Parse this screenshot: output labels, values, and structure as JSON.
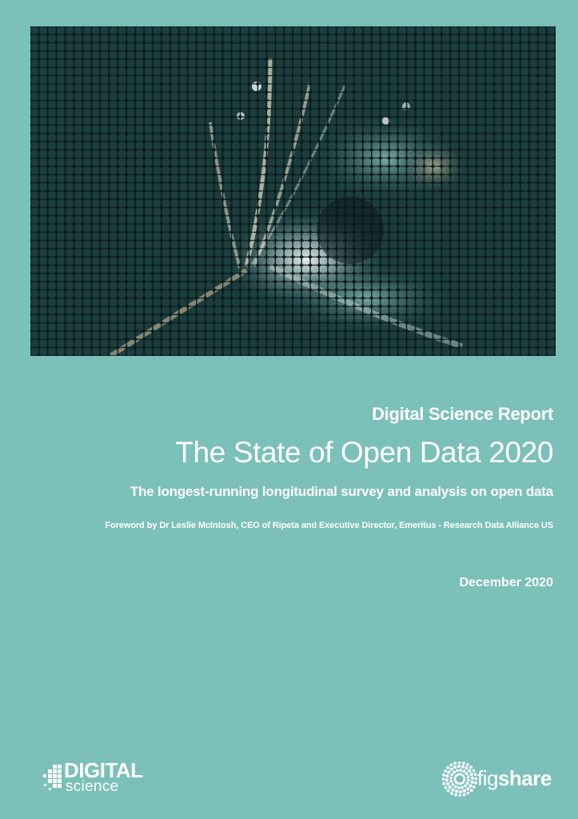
{
  "cover": {
    "series": "Digital Science Report",
    "title": "The State of Open Data 2020",
    "subtitle": "The longest-running longitudinal survey and analysis on open data",
    "foreword": "Foreword by Dr Leslie McIntosh, CEO of Ripeta and Executive Director, Emeritus - Research Data Alliance US",
    "date": "December 2020"
  },
  "logos": {
    "digital_science": {
      "word1": "DIGITAL",
      "word2": "science",
      "icon": "digital-science-pixel-icon"
    },
    "figshare": {
      "fig": "fig",
      "share": "share",
      "icon": "figshare-radial-dots-icon"
    }
  },
  "colors": {
    "background": "#7bc0b9",
    "grid_background": "#0c1a1c",
    "grid_cell": "#1f4448",
    "text": "#ffffff"
  }
}
